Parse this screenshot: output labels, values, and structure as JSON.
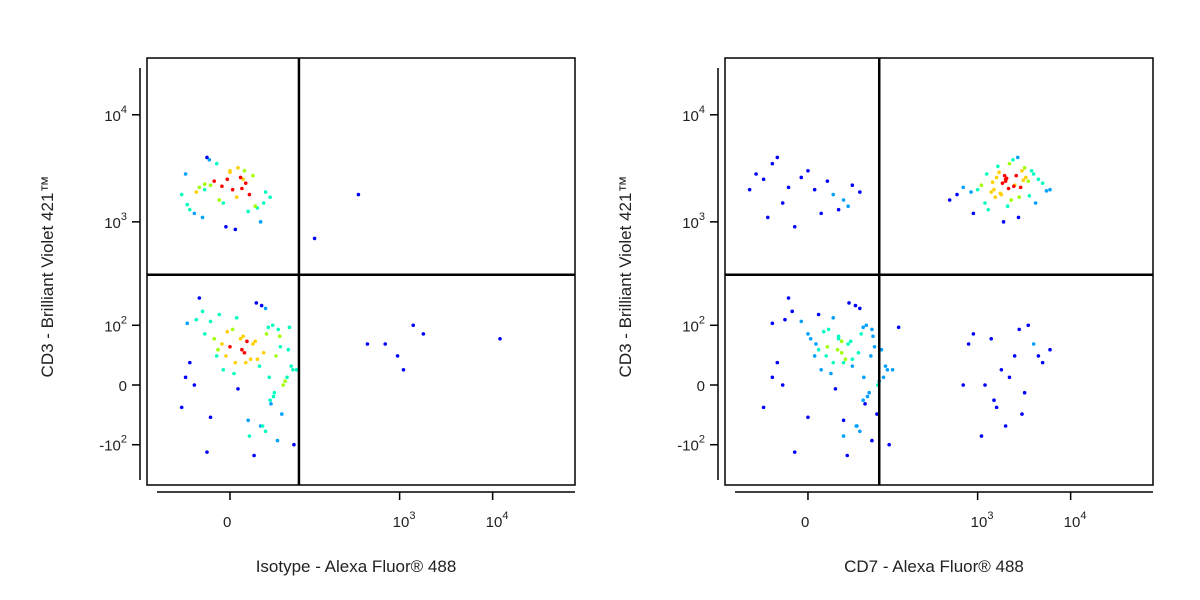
{
  "chart_data": [
    {
      "type": "scatter",
      "x_label": "Isotype - Alexa Fluor® 488",
      "y_label": "CD3 - Brilliant Violet 421™",
      "xscale": {
        "type": "biexponential",
        "linear_width": 30
      },
      "yscale": {
        "type": "biexponential",
        "linear_width": 60
      },
      "xlim": [
        -115,
        76800
      ],
      "ylim": [
        -254,
        33900
      ],
      "xticks": [
        {
          "value": 0,
          "label": "0"
        },
        {
          "value": 1000,
          "label": "10",
          "exponent": "3"
        },
        {
          "value": 10000,
          "label": "10",
          "exponent": "4"
        }
      ],
      "yticks": [
        {
          "value": -100,
          "label": "-10",
          "exponent": "2"
        },
        {
          "value": 0,
          "label": "0"
        },
        {
          "value": 100,
          "label": "10",
          "exponent": "2"
        },
        {
          "value": 1000,
          "label": "10",
          "exponent": "3"
        },
        {
          "value": 10000,
          "label": "10",
          "exponent": "4"
        }
      ],
      "gates": {
        "x": 80,
        "y": 318
      },
      "colormap": [
        "#0000ff",
        "#00a0ff",
        "#00ffc0",
        "#a0ff00",
        "#ffd000",
        "#ff0000"
      ],
      "series": [
        {
          "x": [
            12,
            -20,
            35,
            60,
            -40,
            5,
            25,
            -10,
            45,
            70,
            -5,
            18,
            30,
            -30,
            8,
            50,
            -15,
            22,
            40,
            0,
            65,
            -25,
            15,
            28,
            -8,
            55,
            10,
            -45,
            33,
            3,
            20,
            -18,
            42,
            75,
            -2,
            14,
            38,
            -35,
            26,
            6,
            48,
            -12,
            30,
            58,
            -22,
            11,
            36,
            2,
            24,
            -6,
            44,
            16,
            -28,
            52,
            9,
            31,
            -15,
            68,
            21,
            -3,
            39,
            13,
            -38,
            27,
            4,
            47,
            19,
            -9,
            34,
            62
          ],
          "y": [
            30,
            80,
            -20,
            50,
            10,
            120,
            -60,
            40,
            90,
            -100,
            20,
            60,
            150,
            0,
            70,
            -40,
            110,
            35,
            -10,
            55,
            25,
            190,
            -80,
            45,
            130,
            5,
            75,
            -30,
            95,
            15,
            65,
            -120,
            40,
            20,
            85,
            -50,
            100,
            30,
            160,
            -5,
            55,
            70,
            -70,
            10,
            140,
            45,
            -25,
            90,
            25,
            60,
            -90,
            35,
            115,
            0,
            50,
            80,
            -45,
            20,
            170,
            40,
            -15,
            65,
            105,
            -60,
            30,
            75,
            -130,
            50,
            10,
            95
          ]
        },
        {
          "x": [
            -20,
            -5,
            10,
            -30,
            0,
            15,
            -15,
            25,
            -40,
            5,
            -10,
            20,
            -25,
            8,
            -3,
            30,
            -18,
            12,
            -35,
            2,
            -8,
            18,
            -22,
            6,
            -12,
            28,
            -28,
            0,
            14,
            -6,
            35,
            -16,
            9,
            -38,
            4,
            -2,
            22,
            -20,
            11,
            -45
          ],
          "y": [
            2000,
            1500,
            2500,
            1200,
            3000,
            1800,
            2200,
            1000,
            2800,
            1700,
            3500,
            1400,
            2100,
            2600,
            900,
            1900,
            4000,
            2300,
            1300,
            2000,
            1600,
            2700,
            1100,
            3200,
            2400,
            1500,
            1900,
            2900,
            1250,
            2150,
            1700,
            3800,
            2050,
            1450,
            850,
            2500,
            1350,
            2250,
            3000,
            1800
          ]
        },
        {
          "x": [
            360,
            120,
            700,
            1400,
            950,
            1800,
            12000,
            1100,
            450
          ],
          "y": [
            1800,
            700,
            60,
            100,
            40,
            80,
            70,
            20,
            60
          ]
        }
      ]
    },
    {
      "type": "scatter",
      "x_label": "CD7 - Alexa Fluor® 488",
      "y_label": "CD3 - Brilliant Violet 421™",
      "xscale": {
        "type": "biexponential",
        "linear_width": 30
      },
      "yscale": {
        "type": "biexponential",
        "linear_width": 60
      },
      "xlim": [
        -115,
        76800
      ],
      "ylim": [
        -254,
        33900
      ],
      "xticks": [
        {
          "value": 0,
          "label": "0"
        },
        {
          "value": 1000,
          "label": "10",
          "exponent": "3"
        },
        {
          "value": 10000,
          "label": "10",
          "exponent": "4"
        }
      ],
      "yticks": [
        {
          "value": -100,
          "label": "-10",
          "exponent": "2"
        },
        {
          "value": 0,
          "label": "0"
        },
        {
          "value": 100,
          "label": "10",
          "exponent": "2"
        },
        {
          "value": 1000,
          "label": "10",
          "exponent": "3"
        },
        {
          "value": 10000,
          "label": "10",
          "exponent": "4"
        }
      ],
      "gates": {
        "x": 85,
        "y": 318
      },
      "colormap": [
        "#0000ff",
        "#00a0ff",
        "#00ffc0",
        "#a0ff00",
        "#ffd000",
        "#ff0000"
      ],
      "series": [
        {
          "x": [
            30,
            0,
            55,
            90,
            -30,
            20,
            45,
            5,
            70,
            110,
            10,
            35,
            50,
            -20,
            25,
            80,
            -5,
            40,
            65,
            15,
            100,
            -15,
            30,
            48,
            8,
            85,
            25,
            -40,
            55,
            18,
            38,
            -10,
            68,
            120,
            12,
            30,
            60,
            -25,
            44,
            22,
            75,
            2,
            50,
            95,
            -12,
            28,
            58,
            16,
            40,
            6,
            70,
            32,
            -18,
            82,
            24,
            52,
            0,
            105,
            36,
            14,
            62,
            28,
            -30,
            46,
            20,
            72,
            34,
            8,
            56,
            140
          ],
          "y": [
            30,
            80,
            -20,
            50,
            10,
            120,
            -60,
            40,
            90,
            -100,
            20,
            60,
            150,
            0,
            70,
            -40,
            110,
            35,
            -10,
            55,
            25,
            190,
            -80,
            45,
            130,
            5,
            75,
            -30,
            95,
            15,
            65,
            -120,
            40,
            20,
            85,
            -50,
            100,
            30,
            160,
            -5,
            55,
            70,
            -70,
            10,
            140,
            45,
            -25,
            90,
            25,
            60,
            -90,
            35,
            115,
            0,
            50,
            80,
            -45,
            20,
            170,
            40,
            -15,
            65,
            105,
            -60,
            30,
            75,
            -130,
            50,
            10,
            95
          ]
        },
        {
          "x": [
            2000,
            1500,
            3000,
            1200,
            2500,
            4000,
            1800,
            900,
            2200,
            3500,
            1000,
            2800,
            1600,
            5000,
            2100,
            700,
            3200,
            1400,
            2600,
            1900,
            4500,
            1100,
            2300,
            3800,
            1700,
            600,
            2900,
            1300,
            2400,
            6000,
            2000,
            1550,
            3300,
            850,
            2700,
            1850,
            4200,
            1250,
            2150,
            3600,
            1650,
            2450,
            500,
            3100,
            1950,
            2750,
            1450,
            5500,
            2050,
            1750
          ],
          "y": [
            2500,
            2000,
            3000,
            1500,
            2200,
            2800,
            1800,
            1200,
            3500,
            2400,
            2000,
            1700,
            2600,
            2300,
            1400,
            2100,
            3200,
            1900,
            2700,
            1000,
            2500,
            2200,
            1600,
            3000,
            2900,
            1800,
            2100,
            1300,
            3800,
            2000,
            2400,
            1700,
            2600,
            1900,
            4000,
            2300,
            1500,
            2800,
            2050,
            1750,
            3300,
            2150,
            1600,
            2450,
            2700,
            1100,
            2350,
            1950,
            2550,
            1850
          ]
        },
        {
          "x": [
            -40,
            -20,
            0,
            20,
            -60,
            10,
            -30,
            40,
            -10,
            30,
            -50,
            5,
            25,
            -25,
            15,
            -35,
            50,
            -5,
            35,
            -15
          ],
          "y": [
            2500,
            1500,
            3000,
            1800,
            2000,
            1200,
            3500,
            2200,
            900,
            1600,
            2800,
            2000,
            1300,
            4000,
            2400,
            1100,
            1900,
            2600,
            1400,
            2100
          ]
        },
        {
          "x": [
            800,
            1500,
            2500,
            3500,
            1200,
            2000,
            5000,
            900,
            3000,
            1800,
            4000,
            1100,
            2200,
            6000,
            1600,
            2800,
            700,
            3200,
            1400,
            4500
          ],
          "y": [
            60,
            -20,
            40,
            100,
            0,
            -60,
            30,
            80,
            -40,
            20,
            60,
            -80,
            10,
            50,
            -30,
            90,
            0,
            -10,
            70,
            40
          ]
        }
      ]
    }
  ]
}
